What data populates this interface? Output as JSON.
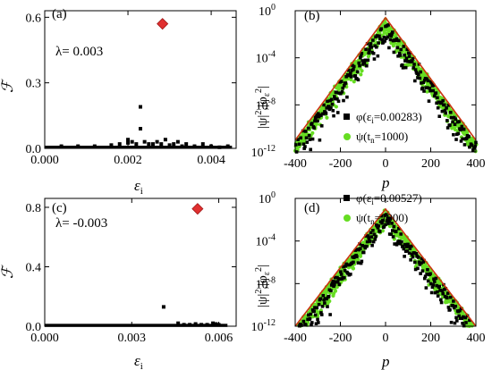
{
  "chart_data": [
    {
      "panel": "(a)",
      "type": "scatter",
      "annotation": "λ= 0.003",
      "xlabel": "ε",
      "xlabel_sub": "i",
      "ylabel": "ℱ",
      "xlim": [
        0,
        0.0046
      ],
      "ylim": [
        0,
        0.63
      ],
      "xticks": [
        0,
        0.002,
        0.004
      ],
      "xtick_labels": [
        "0.000",
        "0.002",
        "0.004"
      ],
      "yticks": [
        0,
        0.3,
        0.6
      ],
      "ytick_labels": [
        "0.0",
        "0.3",
        "0.6"
      ],
      "series": [
        {
          "marker": "square",
          "color": "#000000",
          "points": [
            [
              0.0004,
              0.01
            ],
            [
              0.0008,
              0.01
            ],
            [
              0.0012,
              0.01
            ],
            [
              0.0016,
              0.015
            ],
            [
              0.0018,
              0.02
            ],
            [
              0.002,
              0.04
            ],
            [
              0.002,
              0.025
            ],
            [
              0.0021,
              0.03
            ],
            [
              0.0022,
              0.02
            ],
            [
              0.0023,
              0.19
            ],
            [
              0.0023,
              0.09
            ],
            [
              0.0024,
              0.03
            ],
            [
              0.0025,
              0.02
            ],
            [
              0.0026,
              0.02
            ],
            [
              0.0027,
              0.03
            ],
            [
              0.0028,
              0.02
            ],
            [
              0.0029,
              0.04
            ],
            [
              0.003,
              0.015
            ],
            [
              0.0031,
              0.02
            ],
            [
              0.0032,
              0.03
            ],
            [
              0.0033,
              0.01
            ],
            [
              0.0034,
              0.02
            ],
            [
              0.0036,
              0.01
            ],
            [
              0.0038,
              0.02
            ],
            [
              0.004,
              0.01
            ],
            [
              0.0042,
              0.005
            ],
            [
              0.0044,
              0.01
            ]
          ]
        },
        {
          "marker": "diamond",
          "color": "#e03030",
          "points": [
            [
              0.00283,
              0.57
            ]
          ]
        }
      ],
      "baseline": {
        "from": 0,
        "to": 0.0045,
        "value": 0.004
      }
    },
    {
      "panel": "(b)",
      "type": "scatter",
      "xlabel": "p",
      "ylabel": "|ψ|²,|φε|²",
      "xlim": [
        -400,
        400
      ],
      "ylog": true,
      "ylim_exp": [
        -12,
        0
      ],
      "xticks": [
        -400,
        -200,
        0,
        200,
        400
      ],
      "yticks_exp": [
        -12,
        -8,
        -4,
        0
      ],
      "legend": [
        {
          "marker": "square",
          "color": "#000000",
          "label_pre": "φ(ε",
          "sub": "i",
          "label_post": "=0.00283)"
        },
        {
          "marker": "circle",
          "color": "#66dd22",
          "label_pre": "ψ(t",
          "sub": "n",
          "label_post": "=1000)"
        }
      ],
      "envelope": {
        "color": "#cc3311",
        "peak_exp": -0.6,
        "edge_exp": -11.0
      }
    },
    {
      "panel": "(c)",
      "type": "scatter",
      "annotation": "λ= -0.003",
      "xlabel": "ε",
      "xlabel_sub": "i",
      "ylabel": "ℱ",
      "xlim": [
        0,
        0.0066
      ],
      "ylim": [
        0,
        0.86
      ],
      "xticks": [
        0,
        0.003,
        0.006
      ],
      "xtick_labels": [
        "0.000",
        "0.003",
        "0.006"
      ],
      "yticks": [
        0,
        0.4,
        0.8
      ],
      "ytick_labels": [
        "0.0",
        "0.4",
        "0.8"
      ],
      "series": [
        {
          "marker": "square",
          "color": "#000000",
          "points": [
            [
              0.0041,
              0.13
            ],
            [
              0.0046,
              0.02
            ],
            [
              0.0048,
              0.01
            ],
            [
              0.005,
              0.01
            ],
            [
              0.0052,
              0.015
            ],
            [
              0.0054,
              0.01
            ],
            [
              0.0056,
              0.01
            ],
            [
              0.0058,
              0.02
            ],
            [
              0.0059,
              0.015
            ],
            [
              0.006,
              0.01
            ]
          ]
        },
        {
          "marker": "diamond",
          "color": "#e03030",
          "points": [
            [
              0.00527,
              0.79
            ]
          ]
        }
      ],
      "baseline": {
        "from": 0,
        "to": 0.0063,
        "value": 0.004
      }
    },
    {
      "panel": "(d)",
      "type": "scatter",
      "xlabel": "p",
      "ylabel": "|ψ|²,|φε|²",
      "xlim": [
        -400,
        400
      ],
      "ylog": true,
      "ylim_exp": [
        -12,
        0
      ],
      "xticks": [
        -400,
        -200,
        0,
        200,
        400
      ],
      "yticks_exp": [
        -12,
        -8,
        -4,
        0
      ],
      "legend": [
        {
          "marker": "square",
          "color": "#000000",
          "label_pre": "φ(ε",
          "sub": "i",
          "label_post": "=0.00527)"
        },
        {
          "marker": "circle",
          "color": "#66dd22",
          "label_pre": "ψ(t",
          "sub": "n",
          "label_post": "=1000)"
        }
      ],
      "envelope": {
        "color": "#cc3311",
        "peak_exp": -1.0,
        "edge_exp": -12.0
      }
    }
  ]
}
